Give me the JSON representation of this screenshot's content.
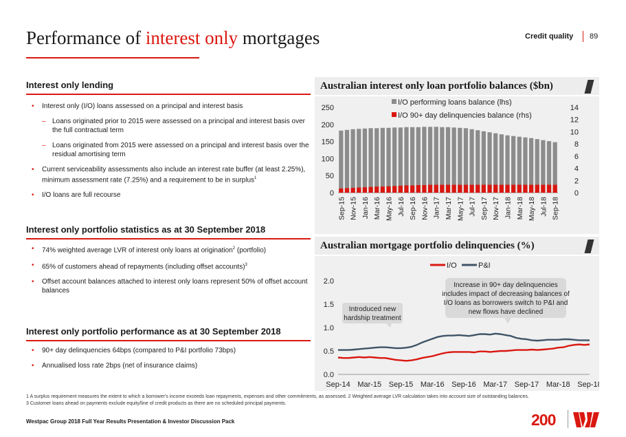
{
  "header": {
    "title_pre": "Performance of ",
    "title_hl": "interest only",
    "title_post": " mortgages",
    "section": "Credit quality",
    "page": "89"
  },
  "lending": {
    "heading": "Interest only lending",
    "b1": "Interest only (I/O) loans assessed on a principal and interest basis",
    "s1": "Loans originated prior to 2015 were assessed on a principal and interest basis over the full contractual term",
    "s2": "Loans originated from 2015 were assessed on a principal and interest basis over the residual amortising term",
    "b2_pre": "Current serviceability assessments also include an interest rate buffer (at least 2.25%), minimum assessment rate (7.25%) and a requirement to be in surplus",
    "b2_sup": "1",
    "b3": "I/O loans are full recourse"
  },
  "stats": {
    "heading": "Interest only portfolio statistics as at 30 September 2018",
    "b1_pre": "74% weighted average LVR of interest only loans at origination",
    "b1_sup": "2",
    "b1_post": " (portfolio)",
    "b2_pre": "65% of customers ahead of repayments (including offset accounts)",
    "b2_sup": "3",
    "b3": "Offset account balances attached to interest only loans represent 50% of offset account balances"
  },
  "performance": {
    "heading": "Interest only portfolio performance as at 30 September 2018",
    "b1": "90+ day delinquencies 64bps (compared to P&I portfolio 73bps)",
    "b2": "Annualised loss rate 2bps (net of insurance claims)"
  },
  "footnotes": {
    "f1": "1 A surplus requirement measures the extent to which a borrower's income exceeds loan repayments, expenses and other commitments, as assessed. 2 Weighted average LVR calculation takes into account size of outstanding balances.",
    "f2": "3 Customer loans ahead on payments exclude equity/line of credit products as there are no scheduled principal payments."
  },
  "footer": {
    "text": "Westpac Group 2018 Full Year Results Presentation & Investor Discussion Pack",
    "logo": "200"
  },
  "colors": {
    "accent": "#da1710",
    "bar_grey": "#8c8c8c",
    "line_grey": "#3f5366"
  },
  "chart_data": [
    {
      "type": "bar",
      "title": "Australian interest only loan portfolio balances ($bn)",
      "categories": [
        "Sep-15",
        "Oct-15",
        "Nov-15",
        "Dec-15",
        "Jan-16",
        "Feb-16",
        "Mar-16",
        "Apr-16",
        "May-16",
        "Jun-16",
        "Jul-16",
        "Aug-16",
        "Sep-16",
        "Oct-16",
        "Nov-16",
        "Dec-16",
        "Jan-17",
        "Feb-17",
        "Mar-17",
        "Apr-17",
        "May-17",
        "Jun-17",
        "Jul-17",
        "Aug-17",
        "Sep-17",
        "Oct-17",
        "Nov-17",
        "Dec-17",
        "Jan-18",
        "Feb-18",
        "Mar-18",
        "Apr-18",
        "May-18",
        "Jun-18",
        "Jul-18",
        "Aug-18",
        "Sep-18"
      ],
      "tick_labels": [
        "Sep-15",
        "Nov-15",
        "Jan-16",
        "Mar-16",
        "May-16",
        "Jul-16",
        "Sep-16",
        "Nov-16",
        "Jan-17",
        "Mar-17",
        "May-17",
        "Jul-17",
        "Sep-17",
        "Nov-17",
        "Jan-18",
        "Mar-18",
        "May-18",
        "Jul-18",
        "Sep-18"
      ],
      "series": [
        {
          "name": "I/O performing loans balance (lhs)",
          "axis": "left",
          "color": "#8c8c8c",
          "values": [
            182,
            184,
            186,
            187,
            188,
            189,
            189,
            190,
            190,
            191,
            191,
            192,
            192,
            192,
            193,
            193,
            193,
            192,
            192,
            191,
            190,
            189,
            186,
            183,
            180,
            177,
            174,
            171,
            168,
            166,
            164,
            162,
            160,
            157,
            154,
            151,
            148
          ]
        },
        {
          "name": "I/O 90+ day delinquencies balance (rhs)",
          "axis": "right",
          "color": "#da1710",
          "values": [
            0.7,
            0.75,
            0.8,
            0.85,
            0.9,
            0.95,
            1.0,
            1.0,
            1.05,
            1.1,
            1.15,
            1.2,
            1.2,
            1.25,
            1.25,
            1.3,
            1.3,
            1.3,
            1.3,
            1.3,
            1.3,
            1.3,
            1.3,
            1.3,
            1.3,
            1.3,
            1.3,
            1.3,
            1.3,
            1.3,
            1.3,
            1.3,
            1.3,
            1.3,
            1.3,
            1.3,
            1.3
          ]
        }
      ],
      "ylim_left": [
        0,
        250
      ],
      "yticks_left": [
        "0",
        "50",
        "100",
        "150",
        "200",
        "250"
      ],
      "ylim_right": [
        0,
        14
      ],
      "yticks_right": [
        "0",
        "2",
        "4",
        "6",
        "8",
        "10",
        "12",
        "14"
      ],
      "legend": "top",
      "grid": false
    },
    {
      "type": "line",
      "title": "Australian mortgage portfolio delinquencies (%)",
      "x": [
        "Sep-14",
        "Oct-14",
        "Nov-14",
        "Dec-14",
        "Jan-15",
        "Feb-15",
        "Mar-15",
        "Apr-15",
        "May-15",
        "Jun-15",
        "Jul-15",
        "Aug-15",
        "Sep-15",
        "Oct-15",
        "Nov-15",
        "Dec-15",
        "Jan-16",
        "Feb-16",
        "Mar-16",
        "Apr-16",
        "May-16",
        "Jun-16",
        "Jul-16",
        "Aug-16",
        "Sep-16",
        "Oct-16",
        "Nov-16",
        "Dec-16",
        "Jan-17",
        "Feb-17",
        "Mar-17",
        "Apr-17",
        "May-17",
        "Jun-17",
        "Jul-17",
        "Aug-17",
        "Sep-17",
        "Oct-17",
        "Nov-17",
        "Dec-17",
        "Jan-18",
        "Feb-18",
        "Mar-18",
        "Apr-18",
        "May-18",
        "Jun-18",
        "Jul-18",
        "Aug-18",
        "Sep-18"
      ],
      "tick_labels": [
        "Sep-14",
        "Mar-15",
        "Sep-15",
        "Mar-16",
        "Sep-16",
        "Mar-17",
        "Sep-17",
        "Mar-18",
        "Sep-18"
      ],
      "series": [
        {
          "name": "I/O",
          "color": "#da1710",
          "values": [
            0.36,
            0.35,
            0.35,
            0.36,
            0.37,
            0.36,
            0.37,
            0.36,
            0.35,
            0.35,
            0.33,
            0.31,
            0.3,
            0.29,
            0.3,
            0.32,
            0.35,
            0.37,
            0.39,
            0.42,
            0.45,
            0.47,
            0.48,
            0.48,
            0.48,
            0.48,
            0.47,
            0.49,
            0.49,
            0.48,
            0.49,
            0.5,
            0.5,
            0.51,
            0.52,
            0.52,
            0.52,
            0.53,
            0.52,
            0.53,
            0.54,
            0.55,
            0.57,
            0.58,
            0.61,
            0.63,
            0.64,
            0.63,
            0.64
          ]
        },
        {
          "name": "P&I",
          "color": "#3f5366",
          "values": [
            0.52,
            0.52,
            0.52,
            0.53,
            0.54,
            0.55,
            0.56,
            0.57,
            0.58,
            0.58,
            0.57,
            0.56,
            0.56,
            0.57,
            0.59,
            0.63,
            0.68,
            0.72,
            0.76,
            0.8,
            0.82,
            0.83,
            0.83,
            0.84,
            0.83,
            0.82,
            0.84,
            0.86,
            0.86,
            0.85,
            0.87,
            0.86,
            0.84,
            0.82,
            0.78,
            0.76,
            0.75,
            0.73,
            0.72,
            0.73,
            0.74,
            0.74,
            0.74,
            0.75,
            0.75,
            0.74,
            0.73,
            0.73,
            0.73
          ]
        }
      ],
      "ylim": [
        0,
        2.0
      ],
      "yticks": [
        "0.0",
        "0.5",
        "1.0",
        "1.5",
        "2.0"
      ],
      "legend": "top",
      "annotations": [
        "Introduced new hardship treatment",
        "Increase in 90+ day delinquencies includes impact of decreasing balances of I/O loans as borrowers switch to P&I and new flows have declined"
      ]
    }
  ]
}
